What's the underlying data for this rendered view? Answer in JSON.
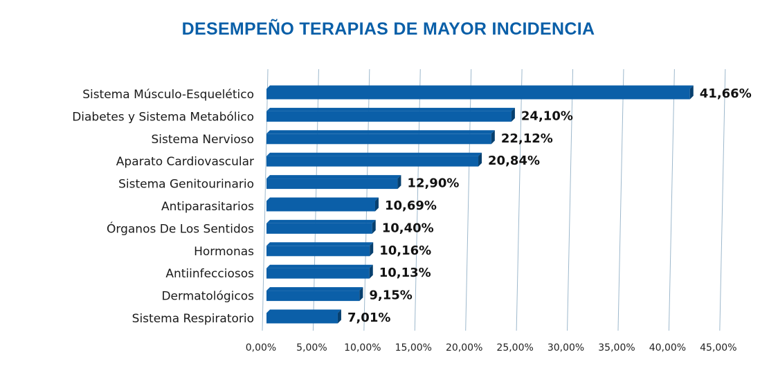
{
  "chart_data": {
    "type": "bar",
    "orientation": "horizontal",
    "title": "DESEMPEÑO TERAPIAS DE MAYOR INCIDENCIA",
    "categories": [
      "Sistema Músculo-Esquelético",
      "Diabetes y Sistema Metabólico",
      "Sistema Nervioso",
      "Aparato Cardiovascular",
      "Sistema Genitourinario",
      "Antiparasitarios",
      "Órganos De Los Sentidos",
      "Hormonas",
      "Antiinfecciosos",
      "Dermatológicos",
      "Sistema Respiratorio"
    ],
    "values": [
      41.66,
      24.1,
      22.12,
      20.84,
      12.9,
      10.69,
      10.4,
      10.16,
      10.13,
      9.15,
      7.01
    ],
    "value_labels": [
      "41,66%",
      "24,10%",
      "22,12%",
      "20,84%",
      "12,90%",
      "10,69%",
      "10,40%",
      "10,16%",
      "10,13%",
      "9,15%",
      "7,01%"
    ],
    "xlim": [
      0,
      45
    ],
    "xticks": [
      "0,00%",
      "5,00%",
      "10,00%",
      "15,00%",
      "20,00%",
      "25,00%",
      "30,00%",
      "35,00%",
      "40,00%",
      "45,00%"
    ],
    "grid": true,
    "colors": {
      "bar": "#0b5fa8",
      "bar_top": "#0b5fa8",
      "bar_side": "#07406f",
      "title": "#0a5fa8",
      "grid": "#9db8cc"
    }
  }
}
